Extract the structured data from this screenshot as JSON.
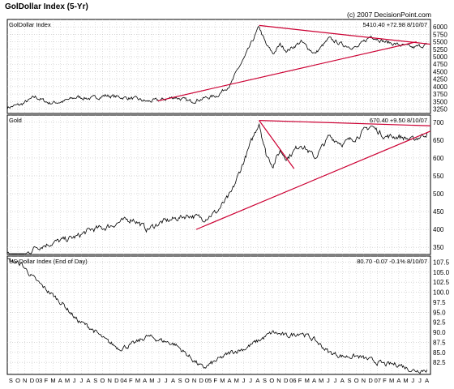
{
  "header": {
    "title": "GolDollar Index (5-Yr)",
    "copyright": "(c) 2007 DecisionPoint.com"
  },
  "chart_data": [
    {
      "type": "line",
      "panel": "GolDollar Index",
      "title": "GolDollar Index",
      "readout": "5410.40 +72.98 8/10/07",
      "ylim": [
        3100,
        6250
      ],
      "yticks": [
        "3250",
        "3500",
        "3750",
        "4000",
        "4250",
        "4500",
        "4750",
        "5000",
        "5250",
        "5500",
        "5750",
        "6000"
      ],
      "ytick_values": [
        3250,
        3500,
        3750,
        4000,
        4250,
        4500,
        4750,
        5000,
        5250,
        5500,
        5750,
        6000
      ],
      "x": [
        0,
        4,
        8,
        12,
        16,
        20,
        24,
        28,
        32,
        36,
        40,
        44,
        48,
        52,
        56,
        60,
        64,
        66,
        68,
        70,
        72,
        74,
        76,
        78,
        80,
        84,
        88,
        92,
        96,
        100,
        104,
        108,
        112,
        116,
        120
      ],
      "y": [
        3300,
        3400,
        3650,
        3450,
        3500,
        3650,
        3600,
        3700,
        3650,
        3600,
        3500,
        3550,
        3650,
        3500,
        3600,
        3700,
        4100,
        4600,
        5000,
        5500,
        6000,
        5400,
        5100,
        5400,
        5200,
        5500,
        5100,
        5600,
        5400,
        5300,
        5700,
        5500,
        5400,
        5300,
        5410
      ],
      "trendlines": [
        {
          "x": [
            43,
            117
          ],
          "y": [
            3520,
            5500
          ]
        },
        {
          "x": [
            72,
            121
          ],
          "y": [
            6050,
            5420
          ]
        },
        {
          "x": [
            43,
            121
          ],
          "y": [
            3500,
            3500
          ],
          "hidden": true
        }
      ],
      "grid": true
    },
    {
      "type": "line",
      "panel": "Gold",
      "title": "Gold",
      "readout": "670.40 +9.50 8/10/07",
      "ylim": [
        330,
        720
      ],
      "yticks": [
        "350",
        "400",
        "450",
        "500",
        "550",
        "600",
        "650",
        "700"
      ],
      "ytick_values": [
        350,
        400,
        450,
        500,
        550,
        600,
        650,
        700
      ],
      "x": [
        0,
        4,
        8,
        12,
        16,
        20,
        24,
        28,
        32,
        36,
        40,
        44,
        48,
        52,
        56,
        60,
        64,
        66,
        68,
        70,
        72,
        74,
        76,
        78,
        80,
        84,
        88,
        92,
        96,
        100,
        104,
        108,
        112,
        116,
        120
      ],
      "y": [
        330,
        320,
        350,
        360,
        370,
        380,
        400,
        405,
        420,
        430,
        400,
        420,
        430,
        440,
        430,
        450,
        500,
        550,
        600,
        650,
        700,
        610,
        580,
        620,
        600,
        640,
        600,
        660,
        640,
        660,
        690,
        660,
        660,
        650,
        670
      ],
      "trendlines": [
        {
          "x": [
            54,
            121
          ],
          "y": [
            400,
            675
          ]
        },
        {
          "x": [
            72,
            121
          ],
          "y": [
            705,
            690
          ]
        },
        {
          "x": [
            72,
            82
          ],
          "y": [
            705,
            570
          ]
        }
      ],
      "grid": true
    },
    {
      "type": "line",
      "panel": "US Dollar Index (End of Day)",
      "title": "US Dollar Index (End of Day)",
      "readout": "80.70 -0.07 -0.1% 8/10/07",
      "ylim": [
        79.5,
        109
      ],
      "yticks": [
        "82.5",
        "85.0",
        "87.5",
        "90.0",
        "92.5",
        "95.0",
        "97.5",
        "100.0",
        "102.5",
        "105.0",
        "107.5"
      ],
      "ytick_values": [
        82.5,
        85.0,
        87.5,
        90.0,
        92.5,
        95.0,
        97.5,
        100.0,
        102.5,
        105.0,
        107.5
      ],
      "x": [
        0,
        4,
        8,
        12,
        16,
        20,
        24,
        28,
        32,
        36,
        40,
        44,
        48,
        52,
        56,
        60,
        64,
        68,
        72,
        76,
        80,
        84,
        88,
        92,
        96,
        100,
        104,
        108,
        112,
        116,
        120
      ],
      "y": [
        108,
        107,
        103,
        100,
        97,
        93,
        91,
        88,
        86,
        87,
        89,
        88,
        87,
        84,
        81,
        83,
        85,
        86,
        88,
        90,
        89,
        90,
        88,
        85,
        84,
        84,
        83,
        82,
        82,
        80.5,
        80.7
      ],
      "grid": true
    }
  ],
  "xaxis": {
    "labels": [
      "S",
      "O",
      "N",
      "D",
      "03",
      "F",
      "M",
      "A",
      "M",
      "J",
      "J",
      "A",
      "S",
      "O",
      "N",
      "D",
      "04",
      "F",
      "M",
      "A",
      "M",
      "J",
      "J",
      "A",
      "S",
      "O",
      "N",
      "D",
      "05",
      "F",
      "M",
      "A",
      "M",
      "J",
      "J",
      "A",
      "S",
      "O",
      "N",
      "D",
      "06",
      "F",
      "M",
      "A",
      "M",
      "J",
      "J",
      "A",
      "S",
      "O",
      "N",
      "D",
      "07",
      "F",
      "M",
      "A",
      "M",
      "J",
      "J",
      "A"
    ]
  },
  "colors": {
    "trendline": "#cc0033",
    "series": "#000000",
    "grid": "#bfbfbf",
    "frame": "#000000"
  }
}
